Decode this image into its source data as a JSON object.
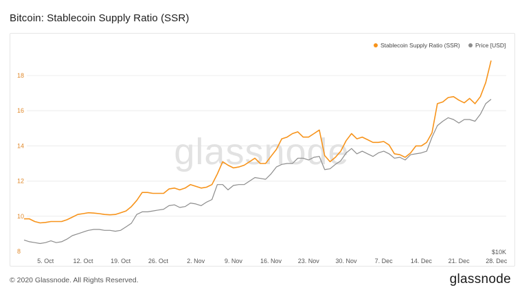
{
  "header": {
    "title": "Bitcoin: Stablecoin Supply Ratio (SSR)"
  },
  "footer": {
    "copyright": "© 2020 Glassnode. All Rights Reserved.",
    "logo_text": "glassnode"
  },
  "watermark": "glassnode",
  "colors": {
    "ssr": "#f7931a",
    "price": "#8c8c8c",
    "grid": "#ececec",
    "left_axis": "#e0892b"
  },
  "chart_data": {
    "type": "line",
    "title": "Bitcoin: Stablecoin Supply Ratio (SSR)",
    "x_ticks": [
      "5. Oct",
      "12. Oct",
      "19. Oct",
      "26. Oct",
      "2. Nov",
      "9. Nov",
      "16. Nov",
      "23. Nov",
      "30. Nov",
      "7. Dec",
      "14. Dec",
      "21. Dec",
      "28. Dec"
    ],
    "x_start": "2020-10-01",
    "y_ticks": [
      8,
      10,
      12,
      14,
      16,
      18
    ],
    "ylim": [
      8,
      19.6
    ],
    "right_axis_label": "$10K",
    "legend": [
      "Stablecoin Supply Ratio (SSR)",
      "Price [USD]"
    ],
    "legend_position": "top-right",
    "grid": true,
    "series": [
      {
        "name": "Stablecoin Supply Ratio (SSR)",
        "values": [
          9.85,
          9.85,
          9.7,
          9.62,
          9.65,
          9.7,
          9.7,
          9.7,
          9.8,
          9.95,
          10.1,
          10.15,
          10.2,
          10.18,
          10.15,
          10.1,
          10.08,
          10.1,
          10.2,
          10.3,
          10.55,
          10.9,
          11.35,
          11.35,
          11.3,
          11.3,
          11.3,
          11.55,
          11.6,
          11.5,
          11.6,
          11.8,
          11.7,
          11.6,
          11.65,
          11.8,
          12.4,
          13.1,
          12.9,
          12.75,
          12.8,
          12.9,
          13.1,
          13.3,
          13.0,
          13.0,
          13.4,
          13.8,
          14.4,
          14.5,
          14.7,
          14.8,
          14.5,
          14.5,
          14.7,
          14.9,
          13.45,
          13.1,
          13.35,
          13.7,
          14.3,
          14.7,
          14.4,
          14.5,
          14.35,
          14.2,
          14.2,
          14.25,
          14.05,
          13.55,
          13.5,
          13.35,
          13.6,
          14.0,
          14.0,
          14.2,
          14.75,
          16.4,
          16.5,
          16.75,
          16.8,
          16.6,
          16.45,
          16.7,
          16.4,
          16.8,
          17.6,
          18.85
        ]
      },
      {
        "name": "Price [USD]",
        "values": [
          8.65,
          8.55,
          8.5,
          8.45,
          8.5,
          8.6,
          8.5,
          8.55,
          8.7,
          8.9,
          9.0,
          9.1,
          9.2,
          9.25,
          9.25,
          9.2,
          9.2,
          9.15,
          9.2,
          9.4,
          9.6,
          10.1,
          10.25,
          10.25,
          10.3,
          10.35,
          10.4,
          10.6,
          10.65,
          10.5,
          10.55,
          10.75,
          10.7,
          10.6,
          10.8,
          10.95,
          11.8,
          11.8,
          11.5,
          11.75,
          11.8,
          11.8,
          12.0,
          12.2,
          12.15,
          12.1,
          12.4,
          12.8,
          12.95,
          13.0,
          13.0,
          13.3,
          13.3,
          13.2,
          13.35,
          13.4,
          12.65,
          12.7,
          12.95,
          13.15,
          13.6,
          13.85,
          13.55,
          13.7,
          13.55,
          13.4,
          13.6,
          13.7,
          13.55,
          13.3,
          13.35,
          13.2,
          13.5,
          13.55,
          13.6,
          13.7,
          14.5,
          15.15,
          15.4,
          15.6,
          15.5,
          15.3,
          15.5,
          15.5,
          15.4,
          15.8,
          16.4,
          16.65
        ]
      }
    ]
  }
}
